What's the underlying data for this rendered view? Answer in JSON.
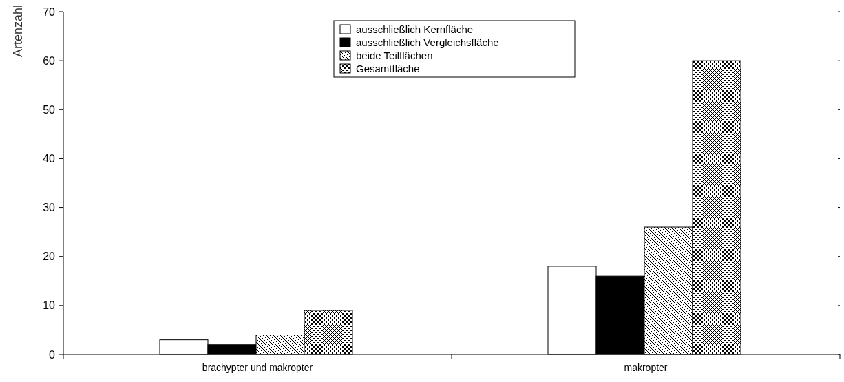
{
  "chart_data": {
    "type": "bar",
    "ylabel": "Artenzahl",
    "categories": [
      "brachypter und makropter",
      "makropter"
    ],
    "series": [
      {
        "name": "ausschließlich Kernfläche",
        "color": "#ffffff",
        "values": [
          3,
          18
        ]
      },
      {
        "name": "ausschließlich Vergleichsfläche",
        "color": "#000000",
        "values": [
          2,
          16
        ]
      },
      {
        "name": "beide Teilflächen",
        "color": "#000000",
        "values": [
          4,
          26
        ]
      },
      {
        "name": "Gesamtfläche",
        "color": "#000000",
        "values": [
          9,
          60
        ]
      }
    ],
    "ylim": [
      0,
      70
    ],
    "yticks": [
      0,
      10,
      20,
      30,
      40,
      50,
      60,
      70
    ],
    "legend": "top",
    "grid": false
  }
}
